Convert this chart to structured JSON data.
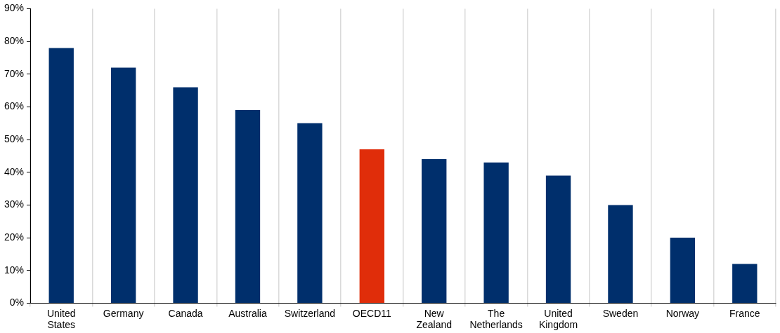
{
  "chart_data": {
    "type": "bar",
    "categories": [
      "United States",
      "Germany",
      "Canada",
      "Australia",
      "Switzerland",
      "OECD11",
      "New Zealand",
      "The Netherlands",
      "United Kingdom",
      "Sweden",
      "Norway",
      "France"
    ],
    "values": [
      78,
      72,
      66,
      59,
      55,
      47,
      44,
      43,
      39,
      30,
      20,
      12
    ],
    "colors": [
      "#002f6c",
      "#002f6c",
      "#002f6c",
      "#002f6c",
      "#002f6c",
      "#e02d0a",
      "#002f6c",
      "#002f6c",
      "#002f6c",
      "#002f6c",
      "#002f6c",
      "#002f6c"
    ],
    "ylim": [
      0,
      90
    ],
    "yticks": [
      {
        "value": 0,
        "label": "0%"
      },
      {
        "value": 10,
        "label": "10%"
      },
      {
        "value": 20,
        "label": "20%"
      },
      {
        "value": 30,
        "label": "30%"
      },
      {
        "value": 40,
        "label": "40%"
      },
      {
        "value": 50,
        "label": "50%"
      },
      {
        "value": 60,
        "label": "60%"
      },
      {
        "value": 70,
        "label": "70%"
      },
      {
        "value": 80,
        "label": "80%"
      },
      {
        "value": 90,
        "label": "90%"
      }
    ],
    "grid": "x",
    "legend": false
  }
}
